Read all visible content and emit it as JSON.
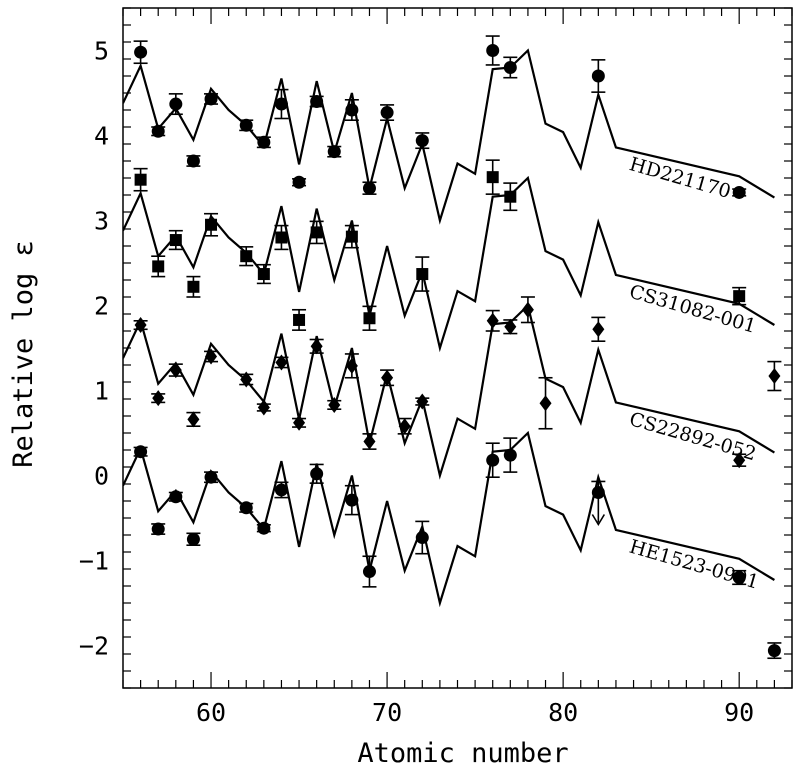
{
  "chart_data": {
    "type": "scatter",
    "xlabel": "Atomic number",
    "ylabel": "Relative log ε",
    "xlim": [
      55,
      93
    ],
    "ylim": [
      -2.5,
      5.5
    ],
    "xticks": [
      60,
      70,
      80,
      90
    ],
    "yticks": [
      -2,
      -1,
      0,
      1,
      2,
      3,
      4,
      5
    ],
    "xminor_step": 1,
    "yminor_step": 0.2,
    "grid": false,
    "model_line": {
      "x": [
        55,
        56,
        57,
        58,
        59,
        60,
        61,
        62,
        63,
        64,
        65,
        66,
        67,
        68,
        69,
        70,
        71,
        72,
        73,
        74,
        75,
        76,
        77,
        78,
        79,
        80,
        81,
        82,
        83,
        90,
        92
      ],
      "y_offset_from_bottom": [
        -0.12,
        0.32,
        -0.42,
        -0.18,
        -0.55,
        0.05,
        -0.2,
        -0.38,
        -0.63,
        0.17,
        -0.84,
        0.14,
        -0.7,
        0.0,
        -1.12,
        -0.3,
        -1.12,
        -0.6,
        -1.5,
        -0.83,
        -0.95,
        0.28,
        0.3,
        0.5,
        -0.36,
        -0.46,
        -0.88,
        -0.02,
        -0.64,
        -0.98,
        -1.23
      ]
    },
    "series": [
      {
        "name": "HD221170",
        "marker": "circle",
        "line_offset": 4.97,
        "x": [
          56,
          57,
          58,
          59,
          60,
          62,
          63,
          64,
          65,
          66,
          67,
          68,
          69,
          70,
          72,
          76,
          77,
          82,
          90
        ],
        "y": [
          4.98,
          4.05,
          4.37,
          3.7,
          4.43,
          4.12,
          3.92,
          4.37,
          3.45,
          4.4,
          3.81,
          4.3,
          3.38,
          4.27,
          3.94,
          5.0,
          4.8,
          4.7,
          3.33
        ],
        "err": [
          0.13,
          0.05,
          0.12,
          0.06,
          0.06,
          0.06,
          0.06,
          0.17,
          0.04,
          0.06,
          0.06,
          0.12,
          0.07,
          0.09,
          0.09,
          0.17,
          0.12,
          0.19,
          0.04
        ],
        "upper_limit": []
      },
      {
        "name": "CS31082-001",
        "marker": "square",
        "line_offset": 3.47,
        "x": [
          56,
          57,
          58,
          59,
          60,
          62,
          63,
          64,
          65,
          66,
          68,
          69,
          72,
          76,
          77,
          90
        ],
        "y": [
          3.48,
          2.46,
          2.77,
          2.22,
          2.95,
          2.58,
          2.37,
          2.8,
          1.83,
          2.86,
          2.81,
          1.85,
          2.37,
          3.51,
          3.28,
          2.11
        ],
        "err": [
          0.13,
          0.12,
          0.11,
          0.12,
          0.13,
          0.11,
          0.11,
          0.14,
          0.12,
          0.13,
          0.13,
          0.14,
          0.2,
          0.2,
          0.16,
          0.1
        ],
        "upper_limit": []
      },
      {
        "name": "CS22892-052",
        "marker": "diamond",
        "line_offset": 1.97,
        "x": [
          56,
          57,
          58,
          59,
          60,
          62,
          63,
          64,
          65,
          66,
          67,
          68,
          69,
          70,
          71,
          72,
          76,
          77,
          78,
          79,
          82,
          90,
          92
        ],
        "y": [
          1.77,
          0.91,
          1.24,
          0.66,
          1.4,
          1.13,
          0.8,
          1.33,
          0.62,
          1.52,
          0.83,
          1.29,
          0.4,
          1.15,
          0.58,
          0.87,
          1.82,
          1.75,
          1.95,
          0.85,
          1.72,
          0.18,
          1.17
        ],
        "err": [
          0.05,
          0.05,
          0.07,
          0.08,
          0.06,
          0.06,
          0.04,
          0.06,
          0.05,
          0.08,
          0.05,
          0.14,
          0.09,
          0.09,
          0.09,
          0.04,
          0.12,
          0.08,
          0.15,
          0.3,
          0.14,
          0.07,
          0.17
        ],
        "upper_limit": []
      },
      {
        "name": "HE1523-0901",
        "marker": "circle",
        "line_offset": 0.47,
        "x": [
          56,
          57,
          58,
          59,
          60,
          62,
          63,
          64,
          66,
          68,
          69,
          72,
          76,
          77,
          82,
          90,
          92
        ],
        "y": [
          0.28,
          -0.63,
          -0.25,
          -0.75,
          -0.02,
          -0.38,
          -0.62,
          -0.17,
          0.02,
          -0.29,
          -1.13,
          -0.73,
          0.18,
          0.24,
          -0.2,
          -1.2,
          -2.06
        ],
        "err": [
          0.05,
          0.06,
          0.05,
          0.07,
          0.06,
          0.05,
          0.04,
          0.09,
          0.11,
          0.17,
          0.18,
          0.19,
          0.2,
          0.2,
          0.13,
          0.08,
          0.09
        ],
        "upper_limit": [
          82
        ]
      }
    ],
    "labels": [
      {
        "text": "HD221170",
        "x": 83.7,
        "y": 3.6,
        "rotate": 16
      },
      {
        "text": "CS31082-001",
        "x": 83.7,
        "y": 2.1,
        "rotate": 16
      },
      {
        "text": "CS22892-052",
        "x": 83.7,
        "y": 0.6,
        "rotate": 16
      },
      {
        "text": "HE1523-0901",
        "x": 83.7,
        "y": -0.9,
        "rotate": 16
      }
    ]
  }
}
